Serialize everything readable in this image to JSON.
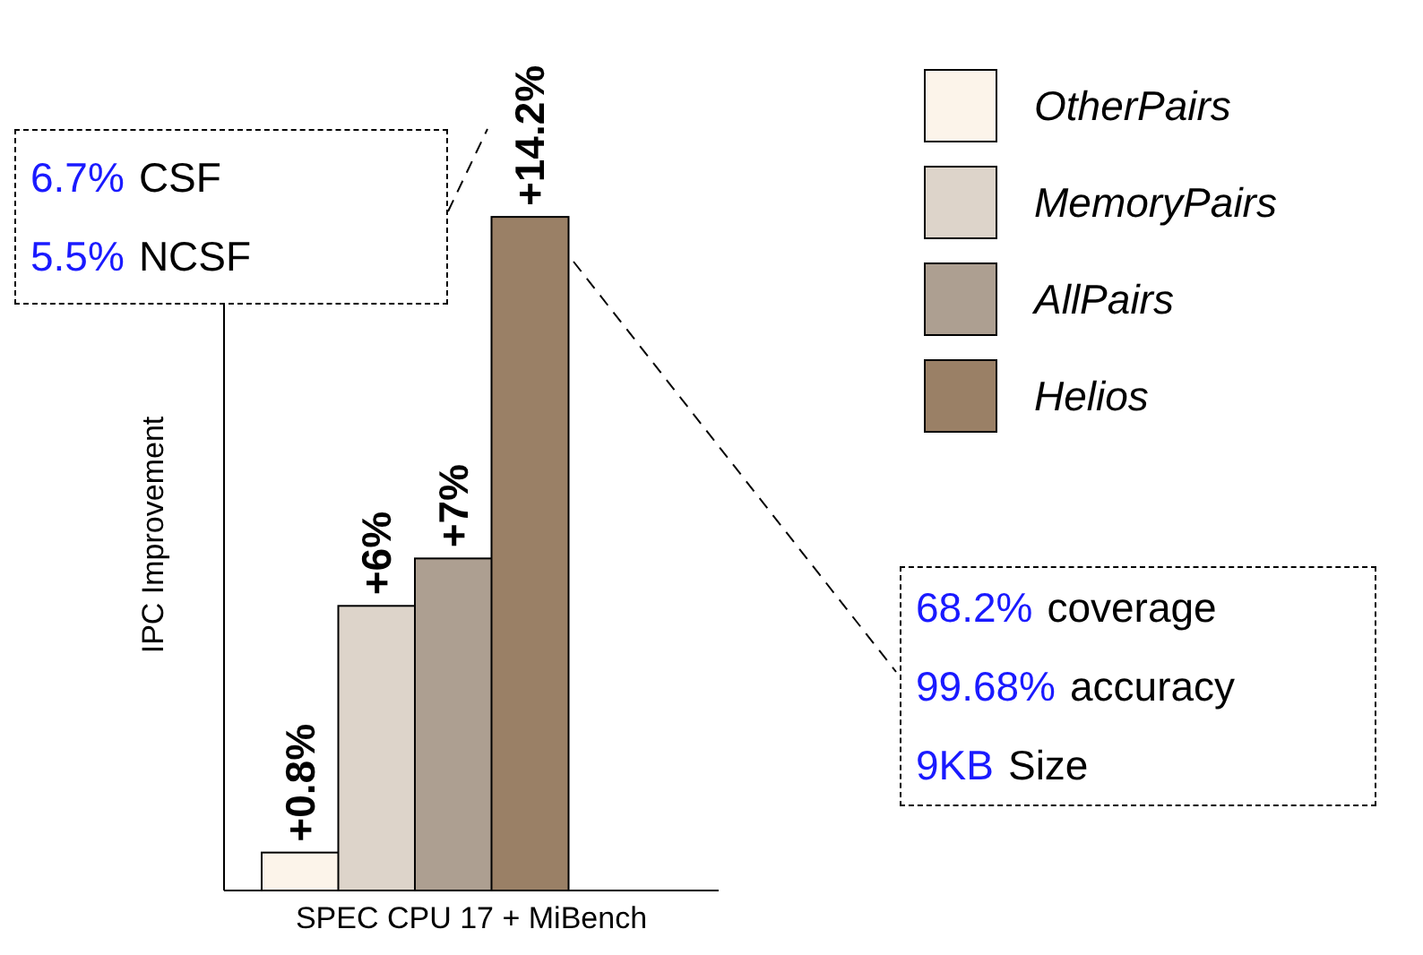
{
  "chart_data": {
    "type": "bar",
    "categories": [
      null,
      null,
      null,
      null
    ],
    "xlabel": "SPEC CPU 17 + MiBench",
    "ylabel": "IPC Improvement",
    "legend": "right",
    "stacked": true,
    "series": [
      {
        "name": "OtherPairs",
        "color": "#fcf4ea",
        "values": [
          0.8,
          null,
          null,
          null
        ],
        "value_labels": [
          "+0.8%",
          null,
          null,
          null
        ]
      },
      {
        "name": "MemoryPairs",
        "color": "#ddd4ca",
        "values": [
          null,
          6,
          null,
          null
        ],
        "value_labels": [
          null,
          "+6%",
          null,
          null
        ]
      },
      {
        "name": "AllPairs",
        "color": "#ad9f91",
        "values": [
          null,
          null,
          7,
          null
        ],
        "value_labels": [
          null,
          null,
          "+7%",
          null
        ]
      },
      {
        "name": "Helios",
        "color": "#9a8066",
        "values": [
          null,
          null,
          null,
          14.2
        ],
        "value_labels": [
          null,
          null,
          null,
          "+14.2%"
        ]
      }
    ],
    "annotations": [
      "6.7% CSF",
      "5.5% NCSF",
      "68.2% coverage",
      "99.68% accuracy",
      "9KB Size"
    ]
  }
}
